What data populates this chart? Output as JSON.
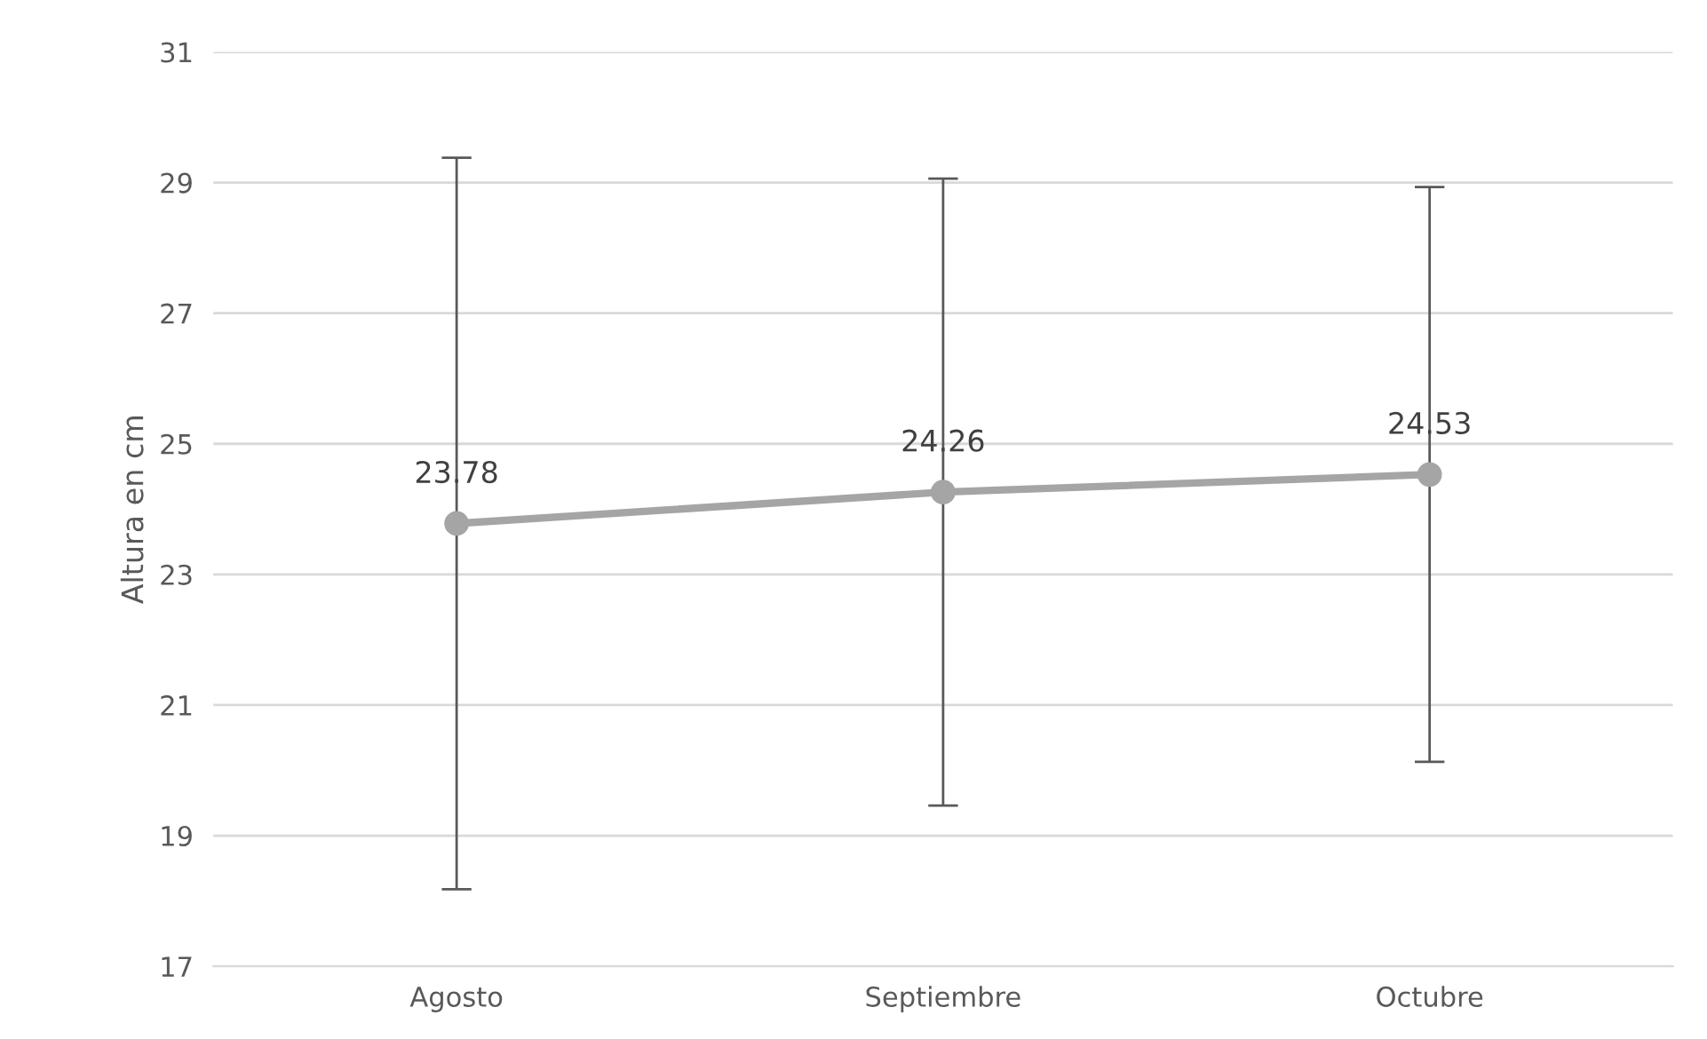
{
  "chart_data": {
    "type": "line",
    "ylabel": "Altura en cm",
    "categories": [
      "Agosto",
      "Septiembre",
      "Octubre"
    ],
    "series": [
      {
        "color": "#a5a5a5",
        "values": [
          23.78,
          24.26,
          24.53
        ],
        "errors": [
          5.6,
          4.8,
          4.4
        ]
      }
    ],
    "ylim": [
      17,
      31
    ],
    "yticks": [
      17,
      19,
      21,
      23,
      25,
      27,
      29,
      31
    ],
    "grid": "y",
    "marker": "circle",
    "line_style": "solid",
    "data_labels": true
  }
}
